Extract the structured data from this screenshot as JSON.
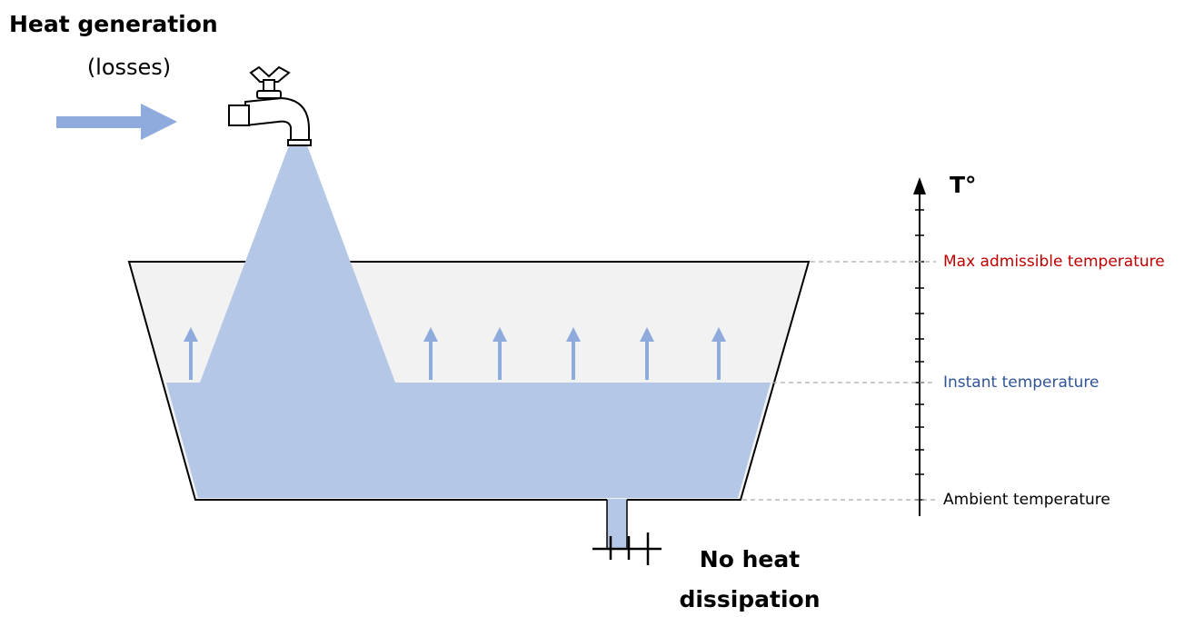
{
  "input": {
    "title": "Heat generation",
    "subtitle": "(losses)"
  },
  "axis": {
    "label": "T°"
  },
  "levels": [
    {
      "label": "Max admissible temperature"
    },
    {
      "label": "Instant temperature"
    },
    {
      "label": "Ambient temperature"
    }
  ],
  "output": {
    "lines": [
      "No heat",
      "dissipation"
    ]
  }
}
